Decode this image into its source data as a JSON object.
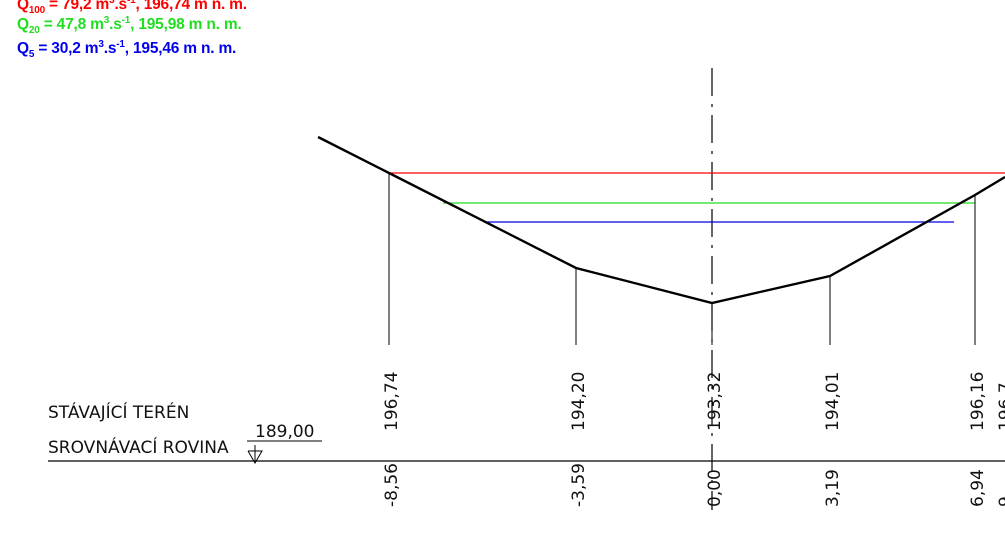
{
  "legend": [
    {
      "q_main": "Q",
      "q_sub": "100",
      "eq": " = 79,2 m",
      "sup1": "3",
      "mid": ".s",
      "sup2": "-1",
      "tail": ", 196,74 m n. m.",
      "color": "#ff0000"
    },
    {
      "q_main": "Q",
      "q_sub": "20",
      "eq": " = 47,8 m",
      "sup1": "3",
      "mid": ".s",
      "sup2": "-1",
      "tail": ", 195,98 m n. m.",
      "color": "#22dd22"
    },
    {
      "q_main": "Q",
      "q_sub": "5",
      "eq": " = 30,2 m",
      "sup1": "3",
      "mid": ".s",
      "sup2": "-1",
      "tail": ", 195,46 m n. m.",
      "color": "#0000ee"
    }
  ],
  "labels": {
    "terrain": "STÁVAJÍCÍ TERÉN",
    "datum": "SROVNÁVACÍ ROVINA",
    "datum_value": "189,00"
  },
  "profile": {
    "elevations": [
      "196,74",
      "194,20",
      "193,32",
      "194,01",
      "196,16",
      "196,7"
    ],
    "distances": [
      "-8,56",
      "-3,59",
      "0,00",
      "3,19",
      "6,94",
      "9,"
    ]
  },
  "colors": {
    "q100": "#ff0000",
    "q20": "#22dd22",
    "q5": "#0000ee",
    "line": "#000000"
  }
}
